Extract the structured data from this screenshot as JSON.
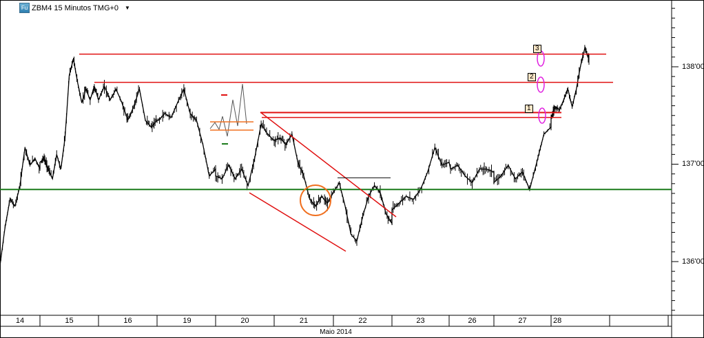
{
  "header": {
    "symbol_icon_text": "Fu",
    "title": "ZBM4 15 Minutos TMG+0",
    "dropdown_icon": "triangle-down-icon"
  },
  "price_axis": {
    "labels": [
      "138'00",
      "137'00",
      "136'00"
    ],
    "values": [
      138,
      137,
      136
    ]
  },
  "time_axis": {
    "days": [
      "14",
      "15",
      "16",
      "19",
      "20",
      "21",
      "22",
      "23",
      "26",
      "27",
      "28"
    ],
    "month": "Maio 2014"
  },
  "colors": {
    "price": "#000000",
    "support": "#1a7a1a",
    "resistance": "#e01010",
    "circle": "#f07020",
    "ellipse": "#e020e0",
    "label_bg": "#fde8c8"
  },
  "annotations": {
    "labels": [
      "1",
      "2",
      "3"
    ],
    "support_level": 136.74,
    "resistance_levels": [
      138.13,
      137.84,
      137.53,
      137.48
    ],
    "short_level": 136.86
  },
  "chart_data": {
    "type": "line",
    "title": "ZBM4 15 Minutos TMG+0",
    "xlabel": "Maio 2014",
    "ylim": [
      135.45,
      138.69
    ],
    "grid": false,
    "series": [
      {
        "day": "14",
        "prices": [
          135.96,
          136.35,
          136.64,
          136.57,
          136.78,
          137.17,
          136.99,
          137.06,
          136.95
        ]
      },
      {
        "day": "15",
        "prices": [
          137.02,
          137.06,
          136.95,
          136.85,
          137.1,
          136.95,
          137.27,
          137.91,
          138.08,
          137.84,
          137.63,
          137.77,
          137.66,
          137.8,
          137.66
        ]
      },
      {
        "day": "16",
        "prices": [
          137.66,
          137.8,
          137.66,
          137.77,
          137.63,
          137.45,
          137.59,
          137.77,
          137.45,
          137.38,
          137.45
        ]
      },
      {
        "day": "19",
        "prices": [
          137.45,
          137.52,
          137.48,
          137.63,
          137.77,
          137.52,
          137.45,
          137.2,
          136.88,
          136.95
        ]
      },
      {
        "day": "20",
        "prices": [
          136.88,
          136.85,
          136.99,
          136.85,
          136.95,
          136.78,
          137.06,
          137.41,
          137.31,
          137.24
        ]
      },
      {
        "day": "21",
        "prices": [
          137.24,
          137.27,
          137.2,
          137.31,
          137.02,
          136.88,
          136.64,
          136.57,
          136.67,
          136.6,
          136.71
        ]
      },
      {
        "day": "22",
        "prices": [
          136.71,
          136.81,
          136.57,
          136.28,
          136.21,
          136.46,
          136.67,
          136.78,
          136.71,
          136.49,
          136.39
        ]
      },
      {
        "day": "23",
        "prices": [
          136.53,
          136.6,
          136.67,
          136.64,
          136.74,
          136.92,
          137.17,
          136.99,
          137.02
        ]
      },
      {
        "day": "26",
        "prices": [
          136.95,
          136.99,
          136.88,
          136.81,
          136.95,
          136.95,
          136.92
        ]
      },
      {
        "day": "27",
        "prices": [
          136.81,
          136.88,
          136.99,
          136.85,
          136.92,
          136.74,
          137.02,
          137.31,
          137.38
        ]
      },
      {
        "day": "28",
        "prices": [
          137.48,
          137.59,
          137.56,
          137.66,
          137.77,
          137.59,
          137.77,
          138.01,
          138.19,
          138.08
        ]
      }
    ]
  }
}
